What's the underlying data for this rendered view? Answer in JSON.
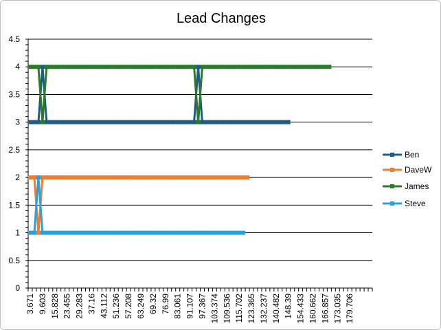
{
  "chart_data": {
    "type": "line",
    "title": "Lead Changes",
    "xlabel": "",
    "ylabel": "",
    "ylim": [
      0,
      4.5
    ],
    "y_ticks": [
      "0",
      "0.5",
      "1",
      "1.5",
      "2",
      "2.5",
      "3",
      "3.5",
      "4",
      "4.5"
    ],
    "x_tick_labels": [
      "3.671",
      "9.603",
      "15.828",
      "23.455",
      "29.283",
      "37.16",
      "43.112",
      "51.236",
      "57.208",
      "63.249",
      "69.32",
      "76.99",
      "83.061",
      "91.107",
      "97.367",
      "103.374",
      "109.536",
      "115.702",
      "123.365",
      "132.237",
      "140.482",
      "148.39",
      "154.433",
      "160.662",
      "166.857",
      "173.035",
      "179.706"
    ],
    "grid": true,
    "legend_position": "right",
    "series": [
      {
        "name": "Ben",
        "color": "#1f5c85",
        "values": [
          3,
          3,
          3,
          4,
          3,
          3,
          3,
          3,
          3,
          3,
          3,
          3,
          3,
          3,
          3,
          3,
          3,
          3,
          3,
          3,
          3,
          3,
          3,
          3,
          3,
          3,
          3,
          3,
          3,
          3,
          3,
          3,
          3,
          3,
          3,
          3,
          3,
          3,
          3,
          3,
          3,
          4,
          3,
          3,
          3,
          3,
          3,
          3,
          3,
          3,
          3,
          3,
          3,
          3,
          3,
          3,
          3,
          3,
          3,
          3,
          3,
          3,
          3,
          3
        ]
      },
      {
        "name": "DaveW",
        "color": "#ed7d31",
        "values": [
          2,
          2,
          1,
          2,
          2,
          2,
          2,
          2,
          2,
          2,
          2,
          2,
          2,
          2,
          2,
          2,
          2,
          2,
          2,
          2,
          2,
          2,
          2,
          2,
          2,
          2,
          2,
          2,
          2,
          2,
          2,
          2,
          2,
          2,
          2,
          2,
          2,
          2,
          2,
          2,
          2,
          2,
          2,
          2,
          2,
          2,
          2,
          2,
          2,
          2,
          2,
          2,
          2,
          2
        ]
      },
      {
        "name": "James",
        "color": "#2a7a2a",
        "values": [
          4,
          4,
          4,
          3,
          4,
          4,
          4,
          4,
          4,
          4,
          4,
          4,
          4,
          4,
          4,
          4,
          4,
          4,
          4,
          4,
          4,
          4,
          4,
          4,
          4,
          4,
          4,
          4,
          4,
          4,
          4,
          4,
          4,
          4,
          4,
          4,
          4,
          4,
          4,
          4,
          4,
          3,
          4,
          4,
          4,
          4,
          4,
          4,
          4,
          4,
          4,
          4,
          4,
          4,
          4,
          4,
          4,
          4,
          4,
          4,
          4,
          4,
          4,
          4,
          4,
          4,
          4,
          4,
          4,
          4,
          4,
          4,
          4,
          4
        ]
      },
      {
        "name": "Steve",
        "color": "#2aa2d8",
        "values": [
          1,
          1,
          2,
          1,
          1,
          1,
          1,
          1,
          1,
          1,
          1,
          1,
          1,
          1,
          1,
          1,
          1,
          1,
          1,
          1,
          1,
          1,
          1,
          1,
          1,
          1,
          1,
          1,
          1,
          1,
          1,
          1,
          1,
          1,
          1,
          1,
          1,
          1,
          1,
          1,
          1,
          1,
          1,
          1,
          1,
          1,
          1,
          1,
          1,
          1,
          1,
          1,
          1
        ]
      }
    ]
  }
}
